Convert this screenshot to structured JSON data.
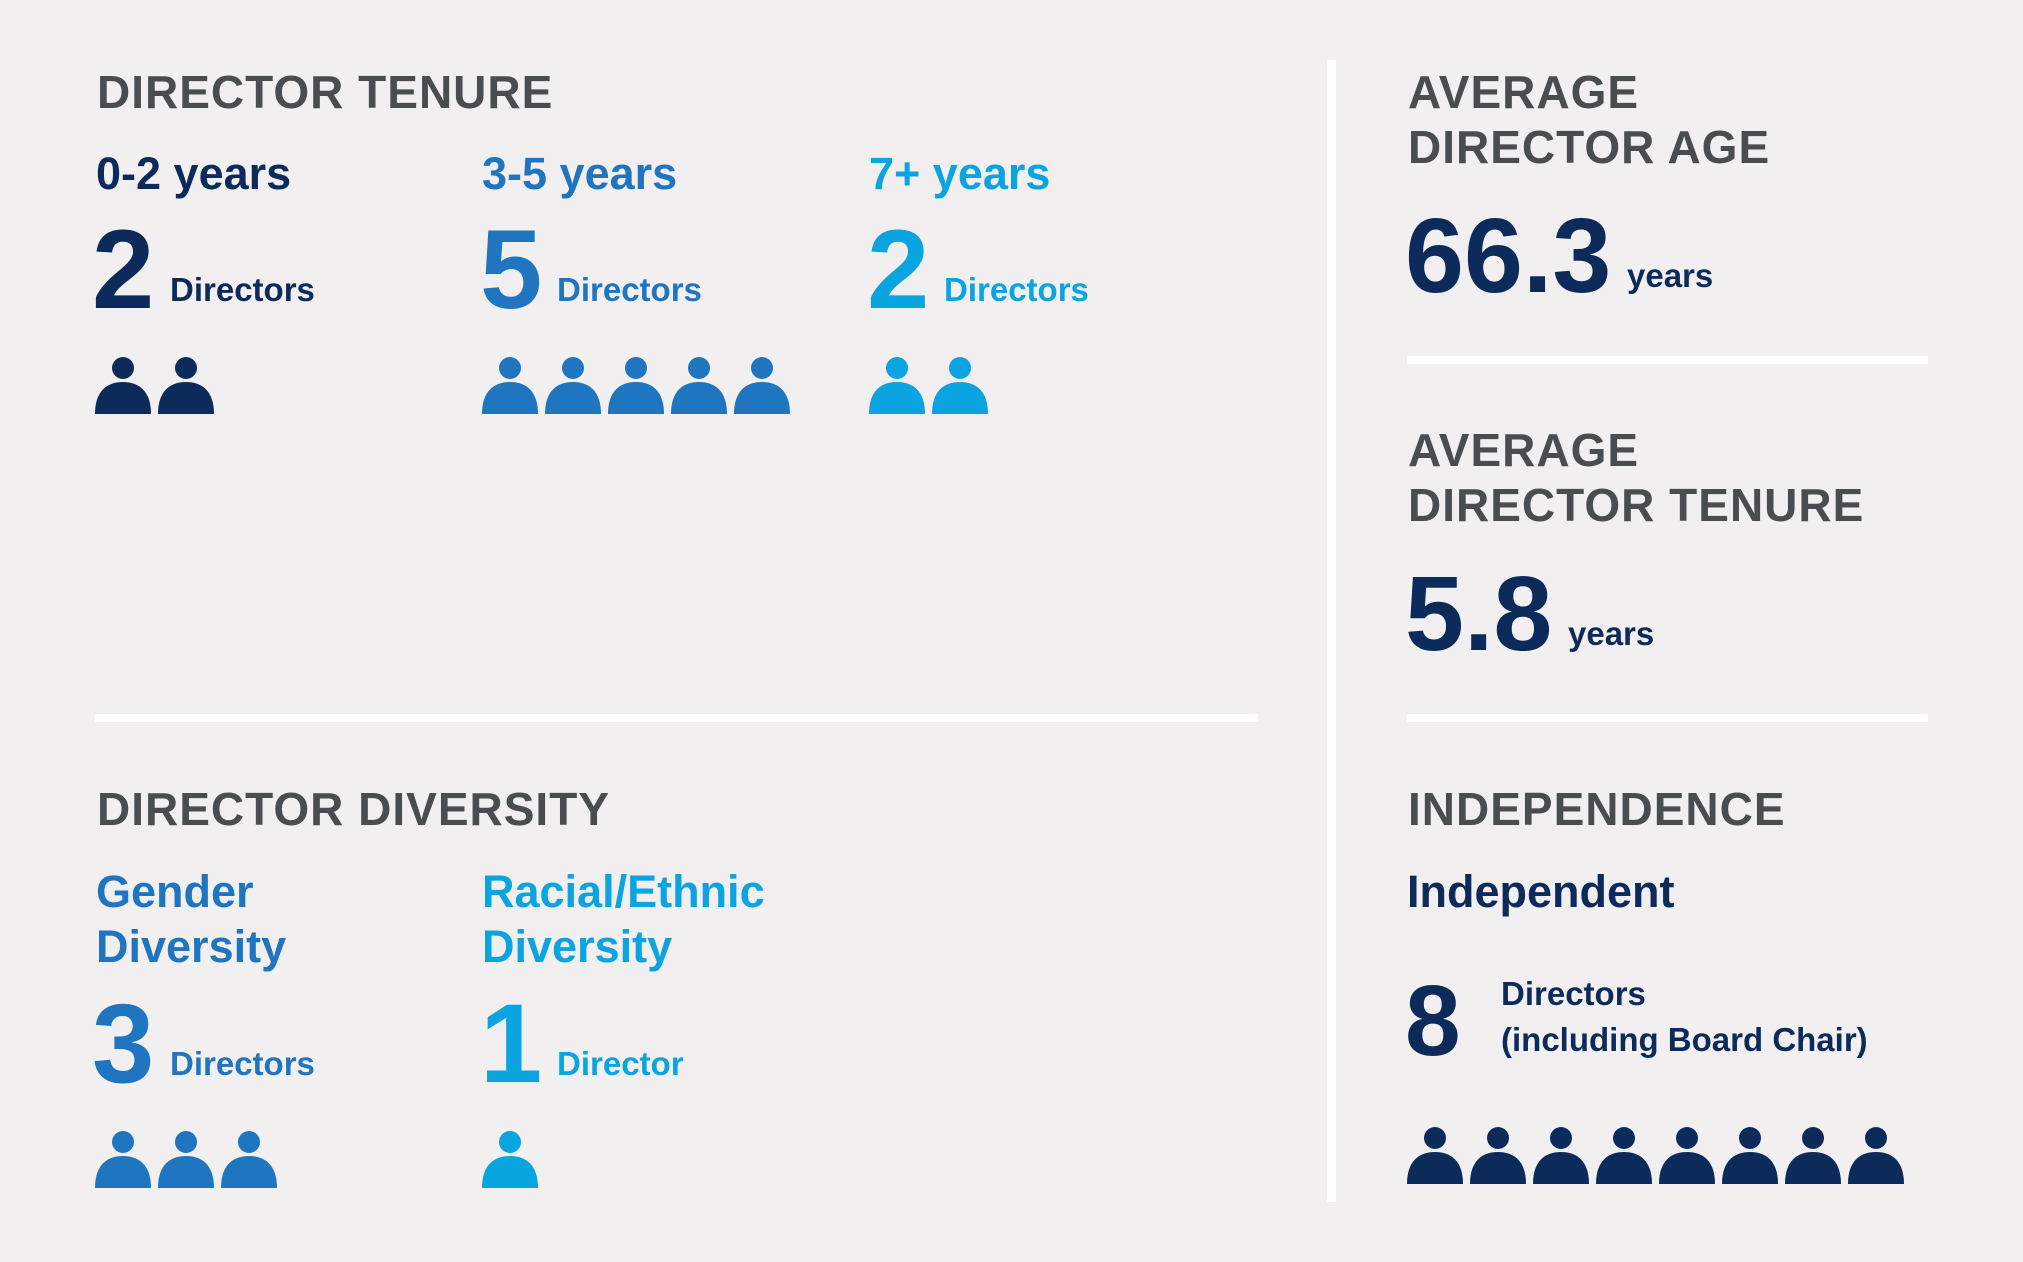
{
  "colors": {
    "dark": "#0d2b5a",
    "mid": "#1f75bf",
    "light": "#0aa4e0",
    "heading": "#4a4d50",
    "background": "#f1eff0",
    "divider": "#ffffff"
  },
  "tenure": {
    "heading": "DIRECTOR TENURE",
    "groups": [
      {
        "label": "0-2 years",
        "count": "2",
        "unit": "Directors",
        "icons": 2,
        "color": "#0d2b5a"
      },
      {
        "label": "3-5 years",
        "count": "5",
        "unit": "Directors",
        "icons": 5,
        "color": "#1f75bf"
      },
      {
        "label": "7+ years",
        "count": "2",
        "unit": "Directors",
        "icons": 2,
        "color": "#0aa4e0"
      }
    ]
  },
  "diversity": {
    "heading": "DIRECTOR DIVERSITY",
    "groups": [
      {
        "label_line1": "Gender",
        "label_line2": "Diversity",
        "count": "3",
        "unit": "Directors",
        "icons": 3,
        "color": "#1f75bf"
      },
      {
        "label_line1": "Racial/Ethnic",
        "label_line2": "Diversity",
        "count": "1",
        "unit": "Director",
        "icons": 1,
        "color": "#0aa4e0"
      }
    ]
  },
  "age": {
    "heading_line1": "AVERAGE",
    "heading_line2": "DIRECTOR AGE",
    "value": "66.3",
    "unit": "years"
  },
  "avg_tenure": {
    "heading_line1": "AVERAGE",
    "heading_line2": "DIRECTOR TENURE",
    "value": "5.8",
    "unit": "years"
  },
  "independence": {
    "heading": "INDEPENDENCE",
    "label": "Independent",
    "count": "8",
    "unit_line1": "Directors",
    "unit_line2": "(including Board Chair)",
    "icons": 8,
    "color": "#0d2b5a"
  }
}
